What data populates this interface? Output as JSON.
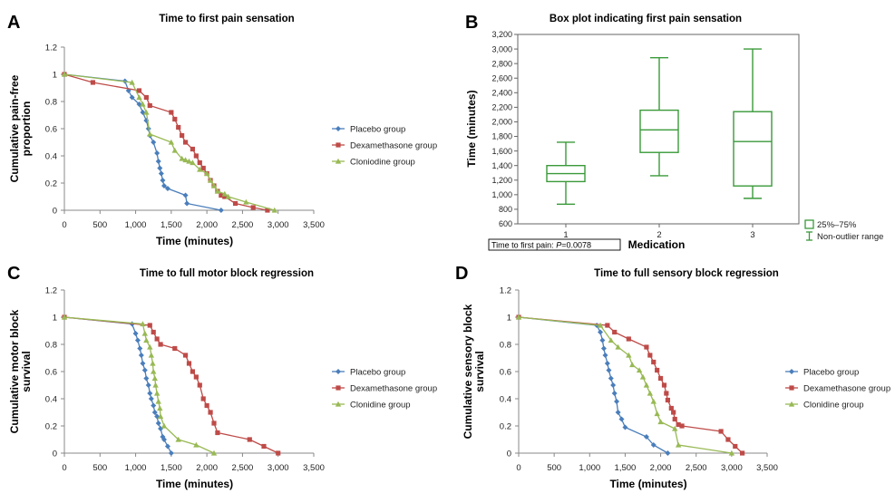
{
  "chart_data": [
    {
      "id": "A",
      "type": "line",
      "panel_label": "A",
      "title": "Time to first pain sensation",
      "xlabel": "Time (minutes)",
      "ylabel": [
        "Cumulative pain-free",
        "proportion"
      ],
      "xlim": [
        0,
        3500
      ],
      "ylim": [
        0,
        1.2
      ],
      "xticks": [
        "0",
        "500",
        "1,000",
        "1,500",
        "2,000",
        "2,500",
        "3,000",
        "3,500"
      ],
      "yticks": [
        "0",
        "0.2",
        "0.4",
        "0.6",
        "0.8",
        "1",
        "1.2"
      ],
      "legend_position": "right",
      "series": [
        {
          "name": "Placebo group",
          "color": "#4a7ebb",
          "marker": "diamond",
          "x": [
            0,
            850,
            900,
            950,
            1050,
            1100,
            1150,
            1180,
            1200,
            1250,
            1300,
            1320,
            1340,
            1360,
            1380,
            1400,
            1450,
            1700,
            1720,
            2200
          ],
          "y": [
            1,
            0.95,
            0.88,
            0.83,
            0.78,
            0.72,
            0.66,
            0.6,
            0.55,
            0.5,
            0.42,
            0.36,
            0.31,
            0.27,
            0.22,
            0.18,
            0.16,
            0.11,
            0.05,
            0
          ]
        },
        {
          "name": "Dexamethasone group",
          "color": "#be4b48",
          "marker": "square",
          "x": [
            0,
            400,
            1050,
            1150,
            1200,
            1500,
            1550,
            1600,
            1650,
            1700,
            1800,
            1850,
            1900,
            1950,
            2000,
            2050,
            2100,
            2150,
            2200,
            2250,
            2400,
            2650,
            2850
          ],
          "y": [
            1,
            0.94,
            0.88,
            0.83,
            0.77,
            0.72,
            0.67,
            0.61,
            0.55,
            0.5,
            0.45,
            0.4,
            0.35,
            0.31,
            0.27,
            0.22,
            0.18,
            0.14,
            0.11,
            0.1,
            0.05,
            0.02,
            0
          ]
        },
        {
          "name": "Cloniodine group",
          "color": "#98b954",
          "marker": "triangle",
          "x": [
            0,
            950,
            1050,
            1100,
            1150,
            1200,
            1500,
            1550,
            1650,
            1700,
            1750,
            1800,
            1900,
            2000,
            2050,
            2100,
            2150,
            2250,
            2300,
            2550,
            2950
          ],
          "y": [
            1,
            0.94,
            0.83,
            0.78,
            0.72,
            0.56,
            0.5,
            0.44,
            0.38,
            0.37,
            0.36,
            0.35,
            0.3,
            0.27,
            0.22,
            0.18,
            0.14,
            0.12,
            0.1,
            0.06,
            0
          ]
        }
      ]
    },
    {
      "id": "B",
      "type": "box",
      "panel_label": "B",
      "title": "Box plot indicating first pain sensation",
      "xlabel": "Medication",
      "ylabel": "Time (minutes)",
      "ylim": [
        600,
        3200
      ],
      "yticks": [
        "600",
        "800",
        "1,000",
        "1,200",
        "1,400",
        "1,600",
        "1,800",
        "2,000",
        "2,200",
        "2,400",
        "2,600",
        "2,800",
        "3,000",
        "3,200"
      ],
      "categories": [
        "1",
        "2",
        "3"
      ],
      "color": "#3a9a3a",
      "boxes": [
        {
          "category": "1",
          "whisker_low": 870,
          "q1": 1180,
          "median": 1290,
          "q3": 1400,
          "whisker_high": 1720
        },
        {
          "category": "2",
          "whisker_low": 1260,
          "q1": 1580,
          "median": 1890,
          "q3": 2160,
          "whisker_high": 2880
        },
        {
          "category": "3",
          "whisker_low": 950,
          "q1": 1120,
          "median": 1730,
          "q3": 2140,
          "whisker_high": 3000
        }
      ],
      "legend": [
        "25%–75%",
        "Non-outlier range"
      ],
      "annotation": {
        "prefix": "Time to first pain: ",
        "p_label": "P",
        "p_value": "=0.0078"
      }
    },
    {
      "id": "C",
      "type": "line",
      "panel_label": "C",
      "title": "Time to full motor block regression",
      "xlabel": "Time (minutes)",
      "ylabel": [
        "Cumulative motor block",
        "survival"
      ],
      "xlim": [
        0,
        3500
      ],
      "ylim": [
        0,
        1.2
      ],
      "xticks": [
        "0",
        "500",
        "1,000",
        "1,500",
        "2,000",
        "2,500",
        "3,000",
        "3,500"
      ],
      "yticks": [
        "0",
        "0.2",
        "0.4",
        "0.6",
        "0.8",
        "1",
        "1.2"
      ],
      "legend_position": "right",
      "series": [
        {
          "name": "Placebo group",
          "color": "#4a7ebb",
          "marker": "diamond",
          "x": [
            0,
            950,
            1000,
            1030,
            1060,
            1080,
            1100,
            1130,
            1150,
            1180,
            1200,
            1220,
            1250,
            1270,
            1300,
            1320,
            1350,
            1380,
            1400,
            1450,
            1500
          ],
          "y": [
            1,
            0.95,
            0.88,
            0.83,
            0.77,
            0.72,
            0.66,
            0.61,
            0.55,
            0.5,
            0.44,
            0.4,
            0.35,
            0.3,
            0.27,
            0.22,
            0.18,
            0.12,
            0.1,
            0.05,
            0
          ]
        },
        {
          "name": "Dexamethasone group",
          "color": "#be4b48",
          "marker": "square",
          "x": [
            0,
            1200,
            1250,
            1300,
            1350,
            1550,
            1700,
            1750,
            1800,
            1850,
            1900,
            1950,
            2000,
            2050,
            2100,
            2150,
            2600,
            2800,
            3000
          ],
          "y": [
            1,
            0.94,
            0.89,
            0.84,
            0.8,
            0.77,
            0.72,
            0.66,
            0.6,
            0.56,
            0.5,
            0.4,
            0.35,
            0.3,
            0.22,
            0.15,
            0.1,
            0.05,
            0
          ]
        },
        {
          "name": "Clonidine group",
          "color": "#98b954",
          "marker": "triangle",
          "x": [
            0,
            1100,
            1130,
            1150,
            1200,
            1220,
            1240,
            1250,
            1270,
            1280,
            1300,
            1320,
            1340,
            1350,
            1400,
            1600,
            1850,
            2100
          ],
          "y": [
            1,
            0.95,
            0.88,
            0.83,
            0.78,
            0.72,
            0.66,
            0.6,
            0.55,
            0.5,
            0.44,
            0.38,
            0.33,
            0.27,
            0.2,
            0.1,
            0.06,
            0
          ]
        }
      ]
    },
    {
      "id": "D",
      "type": "line",
      "panel_label": "D",
      "title": "Time to full sensory block regression",
      "xlabel": "Time (minutes)",
      "ylabel": [
        "Cumulative sensory block",
        "survival"
      ],
      "xlim": [
        0,
        3500
      ],
      "ylim": [
        0,
        1.2
      ],
      "xticks": [
        "0",
        "500",
        "1,000",
        "1,500",
        "2,000",
        "2,500",
        "3,000",
        "3,500"
      ],
      "yticks": [
        "0",
        "0.2",
        "0.4",
        "0.6",
        "0.8",
        "1",
        "1.2"
      ],
      "legend_position": "right",
      "series": [
        {
          "name": "Placebo group",
          "color": "#4a7ebb",
          "marker": "diamond",
          "x": [
            0,
            1100,
            1150,
            1180,
            1200,
            1220,
            1250,
            1270,
            1300,
            1330,
            1350,
            1380,
            1400,
            1450,
            1500,
            1800,
            1900,
            2100
          ],
          "y": [
            1,
            0.94,
            0.89,
            0.83,
            0.77,
            0.72,
            0.66,
            0.61,
            0.55,
            0.5,
            0.44,
            0.38,
            0.3,
            0.25,
            0.19,
            0.12,
            0.06,
            0
          ]
        },
        {
          "name": "Dexamethasone group",
          "color": "#be4b48",
          "marker": "square",
          "x": [
            0,
            1250,
            1350,
            1550,
            1800,
            1850,
            1900,
            1950,
            2000,
            2050,
            2080,
            2100,
            2150,
            2180,
            2200,
            2250,
            2300,
            2850,
            2950,
            3050,
            3150
          ],
          "y": [
            1,
            0.94,
            0.89,
            0.84,
            0.78,
            0.72,
            0.67,
            0.61,
            0.55,
            0.5,
            0.44,
            0.39,
            0.33,
            0.3,
            0.25,
            0.21,
            0.2,
            0.16,
            0.1,
            0.05,
            0
          ]
        },
        {
          "name": "Clonidine group",
          "color": "#98b954",
          "marker": "triangle",
          "x": [
            0,
            1150,
            1300,
            1400,
            1550,
            1600,
            1700,
            1750,
            1800,
            1850,
            1900,
            1950,
            2000,
            2200,
            2250,
            3000
          ],
          "y": [
            1,
            0.94,
            0.83,
            0.78,
            0.72,
            0.65,
            0.61,
            0.56,
            0.5,
            0.44,
            0.38,
            0.29,
            0.23,
            0.18,
            0.06,
            0
          ]
        }
      ]
    }
  ]
}
